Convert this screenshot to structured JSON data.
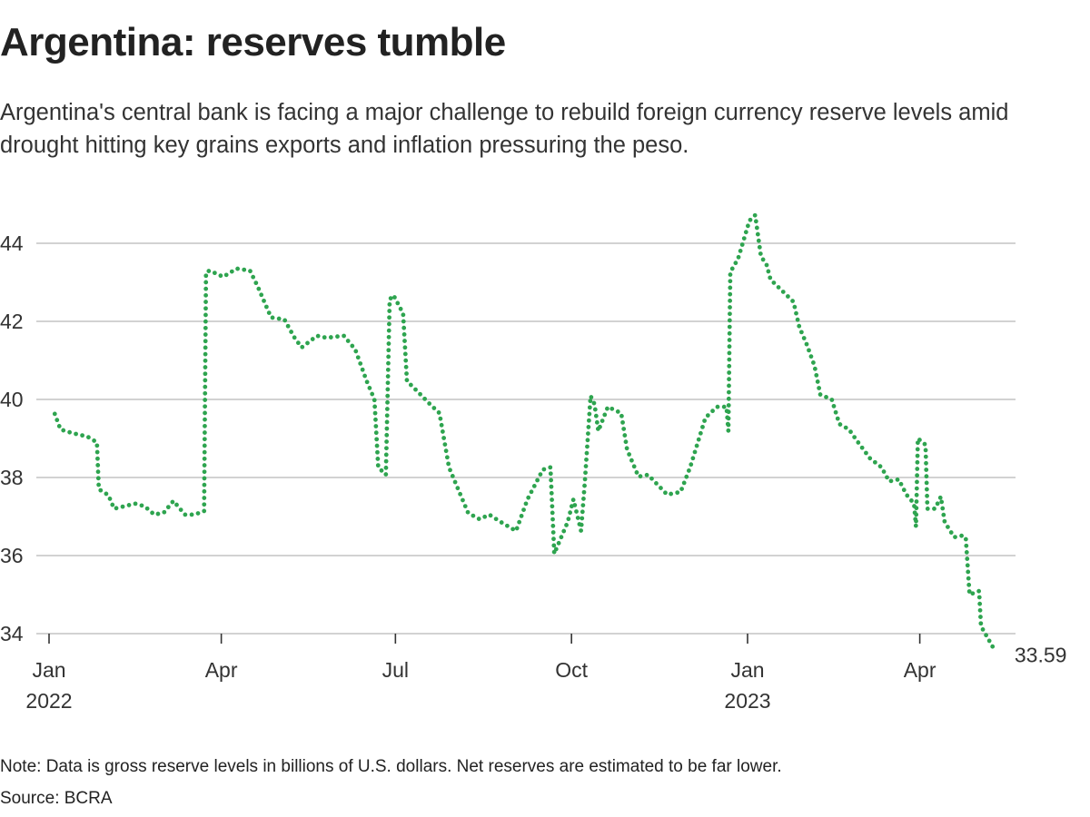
{
  "title": "Argentina: reserves tumble",
  "subtitle": "Argentina's central bank is facing a major challenge to rebuild foreign currency reserve levels amid drought hitting key grains exports and inflation pressuring the peso.",
  "note": "Note: Data is gross reserve levels in billions of U.S. dollars. Net reserves are estimated to be far lower.",
  "source": "Source: BCRA",
  "chart_data": {
    "type": "line",
    "title": "",
    "xlabel": "",
    "ylabel": "",
    "ylim": [
      34,
      45
    ],
    "xlim": [
      "2022-01-01",
      "2023-05-20"
    ],
    "yticks": [
      34,
      36,
      38,
      40,
      42,
      44
    ],
    "xticks": [
      {
        "date": "2022-01-01",
        "label": "Jan",
        "year": "2022"
      },
      {
        "date": "2022-04-01",
        "label": "Apr",
        "year": ""
      },
      {
        "date": "2022-07-01",
        "label": "Jul",
        "year": ""
      },
      {
        "date": "2022-10-01",
        "label": "Oct",
        "year": ""
      },
      {
        "date": "2023-01-01",
        "label": "Jan",
        "year": "2023"
      },
      {
        "date": "2023-04-01",
        "label": "Apr",
        "year": ""
      }
    ],
    "grid": true,
    "line_style": "dotted",
    "color": "#2ea44f",
    "end_label": "33.59",
    "points": [
      [
        "2022-01-04",
        39.63
      ],
      [
        "2022-01-07",
        39.23
      ],
      [
        "2022-01-13",
        39.14
      ],
      [
        "2022-01-21",
        39.05
      ],
      [
        "2022-01-26",
        38.9
      ],
      [
        "2022-01-27",
        37.7
      ],
      [
        "2022-02-01",
        37.55
      ],
      [
        "2022-02-04",
        37.2
      ],
      [
        "2022-02-15",
        37.33
      ],
      [
        "2022-02-20",
        37.26
      ],
      [
        "2022-02-25",
        37.05
      ],
      [
        "2022-03-02",
        37.1
      ],
      [
        "2022-03-07",
        37.4
      ],
      [
        "2022-03-13",
        37.05
      ],
      [
        "2022-03-18",
        37.05
      ],
      [
        "2022-03-23",
        37.14
      ],
      [
        "2022-03-24",
        43.26
      ],
      [
        "2022-03-26",
        43.3
      ],
      [
        "2022-04-02",
        43.14
      ],
      [
        "2022-04-09",
        43.35
      ],
      [
        "2022-04-16",
        43.3
      ],
      [
        "2022-04-20",
        42.9
      ],
      [
        "2022-04-27",
        42.1
      ],
      [
        "2022-05-04",
        42.05
      ],
      [
        "2022-05-09",
        41.6
      ],
      [
        "2022-05-13",
        41.33
      ],
      [
        "2022-05-21",
        41.63
      ],
      [
        "2022-05-26",
        41.58
      ],
      [
        "2022-06-04",
        41.63
      ],
      [
        "2022-06-10",
        41.28
      ],
      [
        "2022-06-16",
        40.47
      ],
      [
        "2022-06-20",
        40.0
      ],
      [
        "2022-06-22",
        38.26
      ],
      [
        "2022-06-26",
        38.07
      ],
      [
        "2022-06-28",
        42.56
      ],
      [
        "2022-06-30",
        42.67
      ],
      [
        "2022-07-05",
        42.2
      ],
      [
        "2022-07-07",
        40.47
      ],
      [
        "2022-07-12",
        40.23
      ],
      [
        "2022-07-19",
        39.88
      ],
      [
        "2022-07-24",
        39.65
      ],
      [
        "2022-07-29",
        38.26
      ],
      [
        "2022-08-03",
        37.67
      ],
      [
        "2022-08-08",
        37.09
      ],
      [
        "2022-08-14",
        36.93
      ],
      [
        "2022-08-19",
        37.05
      ],
      [
        "2022-08-25",
        36.86
      ],
      [
        "2022-09-02",
        36.63
      ],
      [
        "2022-09-08",
        37.44
      ],
      [
        "2022-09-16",
        38.2
      ],
      [
        "2022-09-20",
        38.26
      ],
      [
        "2022-09-22",
        36.05
      ],
      [
        "2022-09-29",
        36.86
      ],
      [
        "2022-10-02",
        37.44
      ],
      [
        "2022-10-06",
        36.63
      ],
      [
        "2022-10-08",
        37.9
      ],
      [
        "2022-10-11",
        40.09
      ],
      [
        "2022-10-13",
        39.88
      ],
      [
        "2022-10-15",
        39.19
      ],
      [
        "2022-10-20",
        39.81
      ],
      [
        "2022-10-27",
        39.65
      ],
      [
        "2022-10-30",
        38.72
      ],
      [
        "2022-11-05",
        38.02
      ],
      [
        "2022-11-10",
        38.07
      ],
      [
        "2022-11-20",
        37.56
      ],
      [
        "2022-11-27",
        37.63
      ],
      [
        "2022-12-02",
        38.26
      ],
      [
        "2022-12-10",
        39.53
      ],
      [
        "2022-12-16",
        39.81
      ],
      [
        "2022-12-21",
        39.81
      ],
      [
        "2022-12-22",
        39.19
      ],
      [
        "2022-12-23",
        43.26
      ],
      [
        "2022-12-27",
        43.6
      ],
      [
        "2023-01-02",
        44.58
      ],
      [
        "2023-01-05",
        44.72
      ],
      [
        "2023-01-08",
        43.67
      ],
      [
        "2023-01-11",
        43.44
      ],
      [
        "2023-01-13",
        43.07
      ],
      [
        "2023-01-20",
        42.74
      ],
      [
        "2023-01-25",
        42.5
      ],
      [
        "2023-01-28",
        41.86
      ],
      [
        "2023-02-01",
        41.4
      ],
      [
        "2023-02-05",
        40.86
      ],
      [
        "2023-02-08",
        40.12
      ],
      [
        "2023-02-14",
        40.0
      ],
      [
        "2023-02-18",
        39.37
      ],
      [
        "2023-02-23",
        39.23
      ],
      [
        "2023-02-27",
        38.95
      ],
      [
        "2023-03-06",
        38.49
      ],
      [
        "2023-03-12",
        38.26
      ],
      [
        "2023-03-16",
        37.9
      ],
      [
        "2023-03-21",
        37.95
      ],
      [
        "2023-03-25",
        37.56
      ],
      [
        "2023-03-29",
        37.33
      ],
      [
        "2023-03-30",
        36.74
      ],
      [
        "2023-03-31",
        39.0
      ],
      [
        "2023-04-04",
        38.84
      ],
      [
        "2023-04-05",
        37.2
      ],
      [
        "2023-04-09",
        37.2
      ],
      [
        "2023-04-12",
        37.51
      ],
      [
        "2023-04-14",
        36.86
      ],
      [
        "2023-04-19",
        36.47
      ],
      [
        "2023-04-23",
        36.51
      ],
      [
        "2023-04-25",
        36.47
      ],
      [
        "2023-04-27",
        35.0
      ],
      [
        "2023-05-02",
        35.09
      ],
      [
        "2023-05-03",
        34.19
      ],
      [
        "2023-05-09",
        33.67
      ],
      [
        "2023-05-11",
        33.59
      ]
    ]
  }
}
